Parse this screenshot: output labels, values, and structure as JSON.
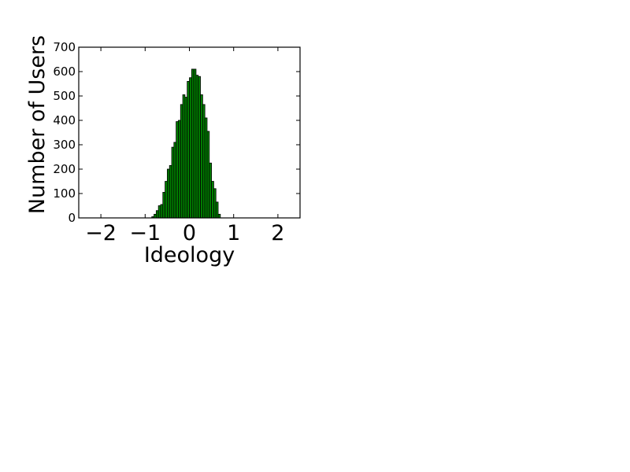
{
  "chart_data": {
    "type": "bar",
    "title": "",
    "xlabel": "Ideology",
    "ylabel": "Number of Users",
    "xlim": [
      -2.5,
      2.5
    ],
    "ylim": [
      0,
      700
    ],
    "xticks": [
      -2,
      -1,
      0,
      1,
      2
    ],
    "xtick_labels": [
      "−2",
      "−1",
      "0",
      "1",
      "2"
    ],
    "yticks": [
      0,
      100,
      200,
      300,
      400,
      500,
      600,
      700
    ],
    "ytick_labels": [
      "0",
      "100",
      "200",
      "300",
      "400",
      "500",
      "600",
      "700"
    ],
    "grid": false,
    "legend": "none",
    "bar_color": "#008000",
    "edge_color": "#000000",
    "bin_width": 0.05,
    "x": [
      -0.85,
      -0.8,
      -0.75,
      -0.7,
      -0.65,
      -0.6,
      -0.55,
      -0.5,
      -0.45,
      -0.4,
      -0.35,
      -0.3,
      -0.25,
      -0.2,
      -0.15,
      -0.1,
      -0.05,
      0.0,
      0.05,
      0.1,
      0.15,
      0.2,
      0.25,
      0.3,
      0.35,
      0.4,
      0.45,
      0.5,
      0.55,
      0.6,
      0.65
    ],
    "values": [
      5,
      15,
      30,
      50,
      55,
      105,
      150,
      200,
      215,
      290,
      310,
      395,
      400,
      465,
      505,
      495,
      560,
      575,
      610,
      610,
      585,
      580,
      505,
      465,
      410,
      355,
      225,
      150,
      120,
      65,
      15
    ]
  }
}
